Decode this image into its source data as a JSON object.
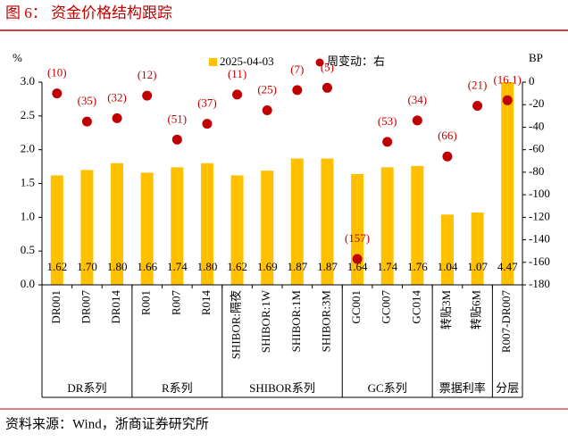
{
  "title": "图 6：  资金价格结构跟踪",
  "source": "资料来源：Wind，浙商证券研究所",
  "chart_data": {
    "type": "bar",
    "categories": [
      "DR001",
      "DR007",
      "DR014",
      "R001",
      "R007",
      "R014",
      "SHIBOR:隔夜",
      "SHIBOR:1W",
      "SHIBOR:1M",
      "SHIBOR:3M",
      "GC001",
      "GC007",
      "GC014",
      "转贴3M",
      "转贴6M",
      "R007-DR007"
    ],
    "groups": [
      {
        "label": "DR系列",
        "span": 3
      },
      {
        "label": "R系列",
        "span": 3
      },
      {
        "label": "SHIBOR系列",
        "span": 4
      },
      {
        "label": "GC系列",
        "span": 3
      },
      {
        "label": "票据利率",
        "span": 2
      },
      {
        "label": "分层",
        "span": 1
      }
    ],
    "ylabel": "%",
    "y2label": "BP",
    "ylim": [
      0,
      3.0
    ],
    "yticks": [
      {
        "value": 0,
        "label": "0.0"
      },
      0.5,
      {
        "value": 1,
        "label": "1.0"
      },
      1.5,
      {
        "value": 2,
        "label": "2.0"
      },
      2.5,
      {
        "value": 3,
        "label": "3.0"
      }
    ],
    "y2lim": [
      -180,
      0
    ],
    "y2ticks": [
      0,
      -20,
      -40,
      -60,
      -80,
      -100,
      -120,
      -140,
      -160,
      -180
    ],
    "series": [
      {
        "name": "2025-04-03",
        "type": "bar",
        "color": "#FFC000",
        "values": [
          1.62,
          1.7,
          1.8,
          1.66,
          1.74,
          1.8,
          1.62,
          1.69,
          1.87,
          1.87,
          1.64,
          1.74,
          1.76,
          1.04,
          1.07,
          4.47
        ],
        "value_labels": [
          "1.62",
          "1.70",
          "1.80",
          "1.66",
          "1.74",
          "1.80",
          "1.62",
          "1.69",
          "1.87",
          "1.87",
          "1.64",
          "1.74",
          "1.76",
          "1.04",
          "1.07",
          "4.47"
        ]
      },
      {
        "name": "周变动：右",
        "type": "scatter",
        "axis": "y2",
        "color": "#C00000",
        "values": [
          -10,
          -35,
          -32,
          -12,
          -51,
          -37,
          -11,
          -25,
          -7,
          -5,
          -157,
          -53,
          -34,
          -66,
          -21,
          -16.1
        ],
        "value_labels": [
          "(10)",
          "(35)",
          "(32)",
          "(12)",
          "(51)",
          "(37)",
          "(11)",
          "(25)",
          "(7)",
          "(5)",
          "(157)",
          "(53)",
          "(34)",
          "(66)",
          "(21)",
          "(16.1)"
        ]
      }
    ]
  }
}
